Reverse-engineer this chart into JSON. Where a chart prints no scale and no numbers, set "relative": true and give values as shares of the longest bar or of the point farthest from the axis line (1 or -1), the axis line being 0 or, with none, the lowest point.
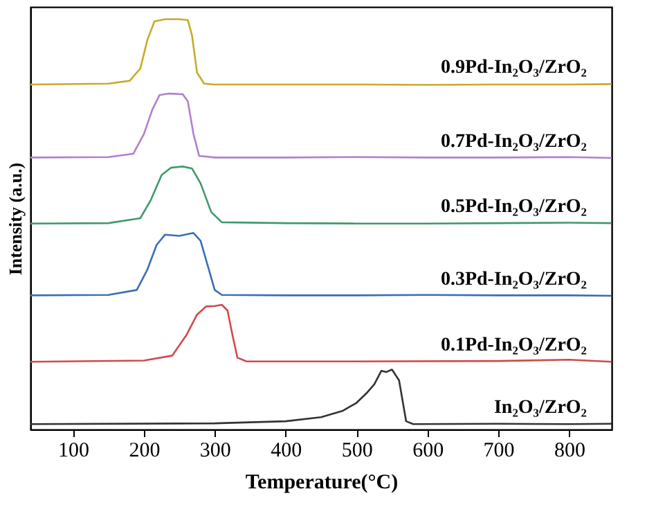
{
  "chart_data": {
    "type": "line",
    "relative": true,
    "xlabel": "Temperature(°C)",
    "ylabel": "Intensity (a.u.)",
    "xlim": [
      40,
      860
    ],
    "xticks": [
      100,
      200,
      300,
      400,
      500,
      600,
      700,
      800
    ],
    "tick_labels": "x",
    "grid": false,
    "marker": "none",
    "line_style": "solid",
    "series": [
      {
        "name": "0.9Pd-In₂O₃/ZrO₂",
        "color": "#c8aa2a",
        "x": [
          40,
          150,
          180,
          195,
          205,
          215,
          230,
          250,
          262,
          268,
          275,
          285,
          300,
          400,
          500,
          600,
          700,
          800,
          860
        ],
        "values": [
          0.841,
          0.843,
          0.85,
          0.88,
          0.95,
          0.995,
          1.0,
          1.0,
          0.998,
          0.96,
          0.87,
          0.843,
          0.841,
          0.841,
          0.841,
          0.84,
          0.841,
          0.841,
          0.842
        ]
      },
      {
        "name": "0.7Pd-In₂O₃/ZrO₂",
        "color": "#b07fd0",
        "x": [
          40,
          150,
          185,
          200,
          212,
          222,
          235,
          255,
          262,
          270,
          278,
          300,
          400,
          500,
          600,
          700,
          800,
          860
        ],
        "values": [
          0.663,
          0.664,
          0.672,
          0.72,
          0.78,
          0.815,
          0.819,
          0.817,
          0.8,
          0.72,
          0.667,
          0.663,
          0.663,
          0.664,
          0.663,
          0.663,
          0.664,
          0.662
        ]
      },
      {
        "name": "0.5Pd-In₂O₃/ZrO₂",
        "color": "#3e9a6a",
        "x": [
          40,
          150,
          195,
          210,
          225,
          238,
          255,
          268,
          280,
          295,
          310,
          400,
          500,
          600,
          700,
          800,
          860
        ],
        "values": [
          0.502,
          0.503,
          0.515,
          0.56,
          0.62,
          0.638,
          0.641,
          0.636,
          0.6,
          0.53,
          0.505,
          0.503,
          0.502,
          0.502,
          0.503,
          0.504,
          0.503
        ]
      },
      {
        "name": "0.3Pd-In₂O₃/ZrO₂",
        "color": "#3a6eb5",
        "x": [
          40,
          150,
          190,
          205,
          218,
          230,
          250,
          270,
          280,
          290,
          300,
          310,
          400,
          500,
          600,
          700,
          800,
          860
        ],
        "values": [
          0.327,
          0.328,
          0.34,
          0.39,
          0.45,
          0.475,
          0.472,
          0.479,
          0.46,
          0.4,
          0.34,
          0.328,
          0.327,
          0.327,
          0.328,
          0.327,
          0.327,
          0.326
        ]
      },
      {
        "name": "0.1Pd-In₂O₃/ZrO₂",
        "color": "#d04a4a",
        "x": [
          40,
          200,
          240,
          260,
          275,
          288,
          300,
          310,
          318,
          325,
          332,
          345,
          500,
          700,
          800,
          860
        ],
        "values": [
          0.165,
          0.168,
          0.18,
          0.23,
          0.28,
          0.3,
          0.301,
          0.304,
          0.29,
          0.23,
          0.175,
          0.166,
          0.166,
          0.167,
          0.17,
          0.165
        ]
      },
      {
        "name": "In₂O₃/ZrO₂",
        "color": "#333333",
        "x": [
          40,
          300,
          400,
          450,
          480,
          500,
          515,
          525,
          535,
          542,
          550,
          560,
          570,
          580,
          700,
          800,
          860
        ],
        "values": [
          0.013,
          0.015,
          0.02,
          0.03,
          0.045,
          0.065,
          0.09,
          0.11,
          0.143,
          0.14,
          0.146,
          0.12,
          0.02,
          0.013,
          0.014,
          0.013,
          0.014
        ]
      }
    ]
  }
}
